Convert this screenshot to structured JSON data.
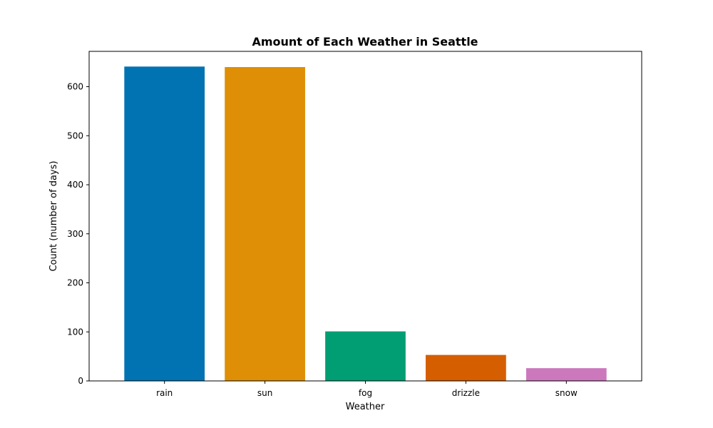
{
  "chart_data": {
    "type": "bar",
    "title": "Amount of Each Weather in Seattle",
    "xlabel": "Weather",
    "ylabel": "Count (number of days)",
    "categories": [
      "rain",
      "sun",
      "fog",
      "drizzle",
      "snow"
    ],
    "values": [
      641,
      640,
      101,
      53,
      26
    ],
    "colors": [
      "#0173b2",
      "#de8f05",
      "#029e73",
      "#d55e00",
      "#cc78bc"
    ],
    "ylim": [
      0,
      672
    ],
    "yticks": [
      0,
      100,
      200,
      300,
      400,
      500,
      600
    ],
    "grid": false,
    "legend": "none"
  }
}
